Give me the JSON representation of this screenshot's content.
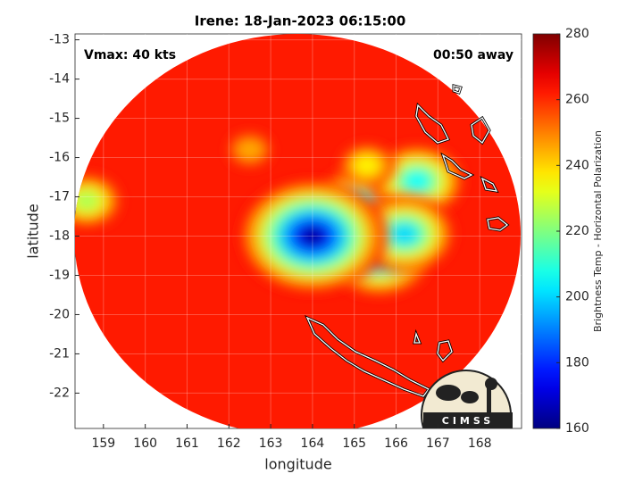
{
  "chart_data": {
    "type": "image",
    "title": "Irene: 18-Jan-2023 06:15:00",
    "annotations": [
      "Vmax: 40 kts",
      "00:50 away"
    ],
    "x_label": "longitude",
    "y_label": "latitude",
    "xlim": [
      158.32,
      169.0
    ],
    "ylim": [
      -22.9,
      -12.85
    ],
    "xticks": [
      159,
      160,
      161,
      162,
      163,
      164,
      165,
      166,
      167,
      168
    ],
    "yticks": [
      -13,
      -14,
      -15,
      -16,
      -17,
      -18,
      -19,
      -20,
      -21,
      -22
    ],
    "grid": true,
    "colorbar": {
      "label": "Brightness Temp - Horizontal Polarization",
      "clim": [
        160,
        280
      ],
      "ticks": [
        160,
        180,
        200,
        220,
        240,
        260,
        280
      ],
      "colormap": "jet"
    },
    "field": {
      "base": 262,
      "hotspots": [
        {
          "lon": 165.1,
          "lat": -17.9,
          "value": 238
        },
        {
          "lon": 163.6,
          "lat": -18.0,
          "value": 222
        },
        {
          "lon": 165.2,
          "lat": -17.1,
          "value": 208
        },
        {
          "lon": 166.5,
          "lat": -16.6,
          "value": 205
        },
        {
          "lon": 165.6,
          "lat": -18.5,
          "value": 196
        },
        {
          "lon": 166.2,
          "lat": -17.95,
          "value": 200
        },
        {
          "lon": 164.0,
          "lat": -18.0,
          "value": 162
        },
        {
          "lon": 158.6,
          "lat": -17.1,
          "value": 225
        },
        {
          "lon": 165.3,
          "lat": -16.2,
          "value": 236
        },
        {
          "lon": 162.5,
          "lat": -15.8,
          "value": 245
        }
      ]
    }
  }
}
